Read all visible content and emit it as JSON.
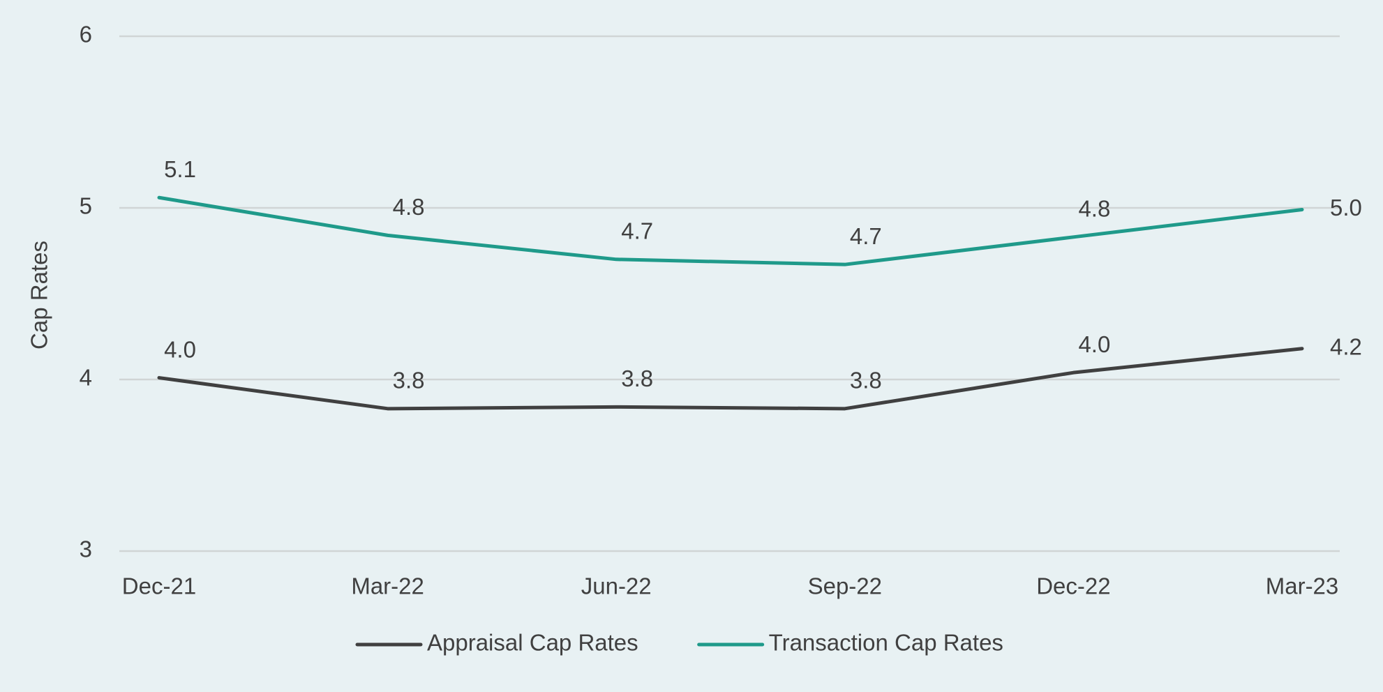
{
  "chart_data": {
    "type": "line",
    "y_label": "Cap Rates",
    "categories": [
      "Dec-21",
      "Mar-22",
      "Jun-22",
      "Sep-22",
      "Dec-22",
      "Mar-23"
    ],
    "series": [
      {
        "name": "Appraisal Cap Rates",
        "color": "#404040",
        "values": [
          4.01,
          3.83,
          3.84,
          3.83,
          4.04,
          4.18
        ],
        "value_labels": [
          "4.0",
          "3.8",
          "3.8",
          "3.8",
          "4.0",
          "4.2"
        ]
      },
      {
        "name": "Transaction Cap Rates",
        "color": "#1f9a8a",
        "values": [
          5.06,
          4.84,
          4.7,
          4.67,
          4.83,
          4.99
        ],
        "value_labels": [
          "5.1",
          "4.8",
          "4.7",
          "4.7",
          "4.8",
          "5.0"
        ]
      }
    ],
    "ylim": [
      3,
      6
    ],
    "yticks": [
      3,
      4,
      5,
      6
    ],
    "grid": true,
    "legend": "bottom"
  }
}
